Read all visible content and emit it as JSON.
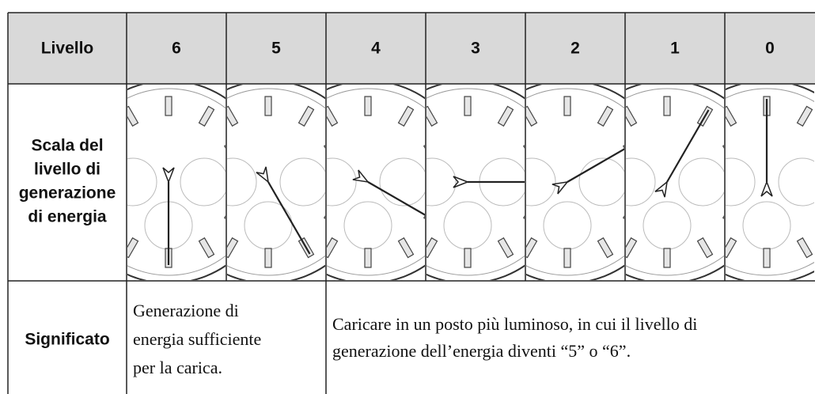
{
  "table": {
    "header": {
      "label": "Livello",
      "levels": [
        "6",
        "5",
        "4",
        "3",
        "2",
        "1",
        "0"
      ]
    },
    "scale_row": {
      "label_lines": [
        "Scala del",
        "livello di",
        "generazione",
        "di energia"
      ]
    },
    "meaning_row": {
      "label": "Significato",
      "cells": [
        {
          "lines": [
            "Generazione di",
            "energia sufficiente",
            "per la carica."
          ]
        },
        {
          "lines": [
            "Caricare in un posto più luminoso, in cui il livello di",
            "generazione dell’energia diventi “5” o “6”."
          ]
        }
      ]
    }
  }
}
